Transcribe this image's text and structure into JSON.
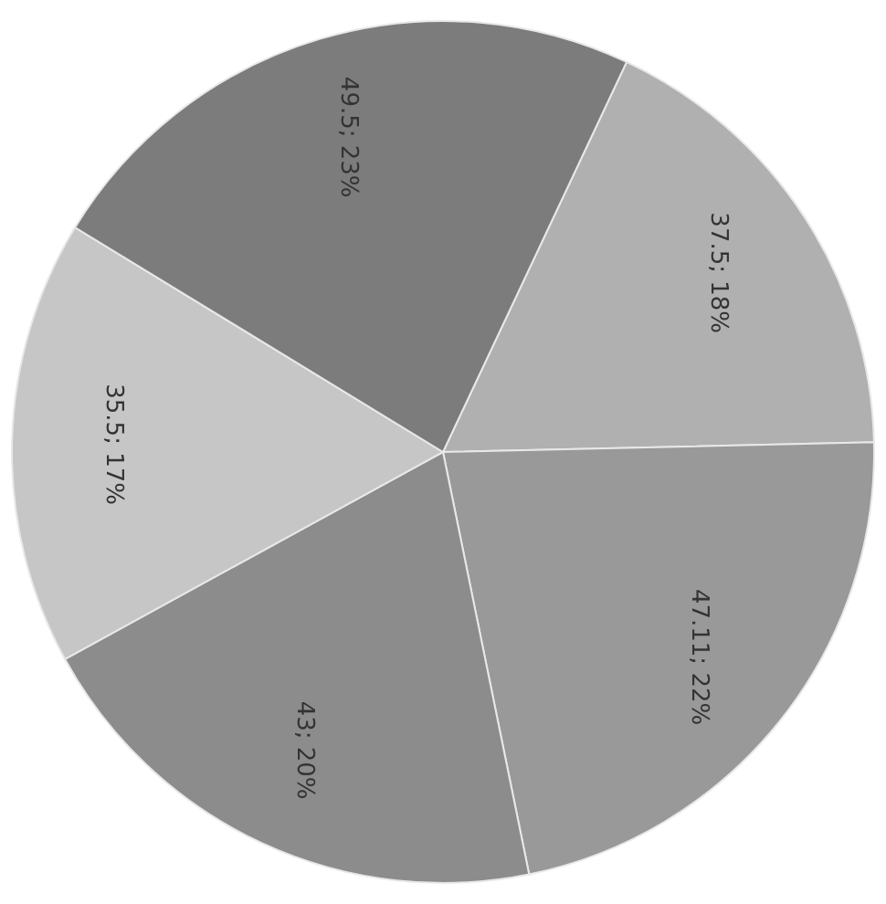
{
  "chart_data": {
    "type": "pie",
    "categories": [
      null,
      null,
      null,
      null,
      null
    ],
    "values": [
      37.5,
      47.11,
      43,
      35.5,
      49.5
    ],
    "colors": [
      "#b0b0b0",
      "#999999",
      "#8c8c8c",
      "#c6c6c6",
      "#7c7c7c"
    ],
    "value_labels": [
      "37.5; 18%",
      "47.11; 22%",
      "43; 20%",
      "35.5; 17%",
      "49.5; 23%"
    ],
    "legend": false
  }
}
